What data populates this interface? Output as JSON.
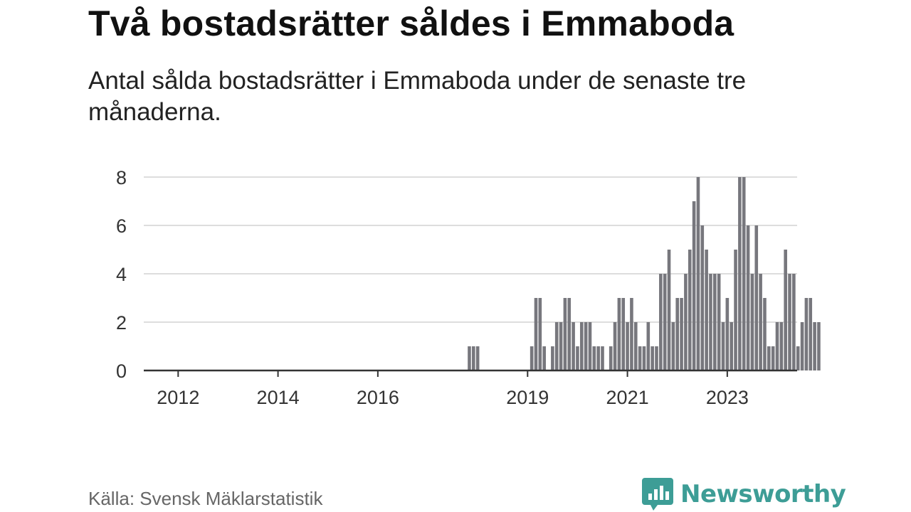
{
  "title": "Två bostadsrätter såldes i Emmaboda",
  "subtitle": "Antal sålda bostadsrätter i Emmaboda under de senaste tre månaderna.",
  "source": "Källa: Svensk Mäklarstatistik",
  "brand": {
    "name": "Newsworthy",
    "icon": "newsworthy-logo-icon"
  },
  "colors": {
    "bar": "#77777d",
    "highlight": "#1f9e96",
    "grid": "#dddddd",
    "axis": "#333333",
    "brand": "#3d9d96"
  },
  "chart_data": {
    "type": "bar",
    "title": "Två bostadsrätter såldes i Emmaboda",
    "xlabel": "",
    "ylabel": "",
    "ylim": [
      0,
      8
    ],
    "yticks": [
      "0",
      "2",
      "4",
      "6",
      "8"
    ],
    "xticks": [
      "2012",
      "2014",
      "2016",
      "2019",
      "2021",
      "2023"
    ],
    "x_start": {
      "year": 2011,
      "month": 6
    },
    "values": [
      0,
      0,
      0,
      0,
      0,
      0,
      0,
      0,
      0,
      0,
      0,
      0,
      0,
      0,
      0,
      0,
      0,
      0,
      0,
      0,
      0,
      0,
      0,
      0,
      0,
      0,
      0,
      0,
      0,
      0,
      0,
      0,
      0,
      0,
      0,
      0,
      0,
      0,
      0,
      0,
      0,
      0,
      0,
      0,
      0,
      0,
      0,
      0,
      0,
      0,
      0,
      0,
      0,
      0,
      0,
      0,
      0,
      0,
      0,
      0,
      0,
      0,
      0,
      0,
      0,
      0,
      0,
      0,
      0,
      0,
      0,
      0,
      0,
      0,
      0,
      0,
      0,
      1,
      1,
      1,
      0,
      0,
      0,
      0,
      0,
      0,
      0,
      0,
      0,
      0,
      0,
      0,
      1,
      3,
      3,
      1,
      0,
      1,
      2,
      2,
      3,
      3,
      2,
      1,
      2,
      2,
      2,
      1,
      1,
      1,
      0,
      1,
      2,
      3,
      3,
      2,
      3,
      2,
      1,
      1,
      2,
      1,
      1,
      4,
      4,
      5,
      2,
      3,
      3,
      4,
      5,
      7,
      8,
      6,
      5,
      4,
      4,
      4,
      2,
      3,
      2,
      5,
      8,
      8,
      6,
      4,
      6,
      4,
      3,
      1,
      1,
      2,
      2,
      5,
      4,
      4,
      1,
      2,
      3,
      3,
      2,
      2
    ],
    "highlight_index": 166,
    "highlight_label": "2"
  }
}
